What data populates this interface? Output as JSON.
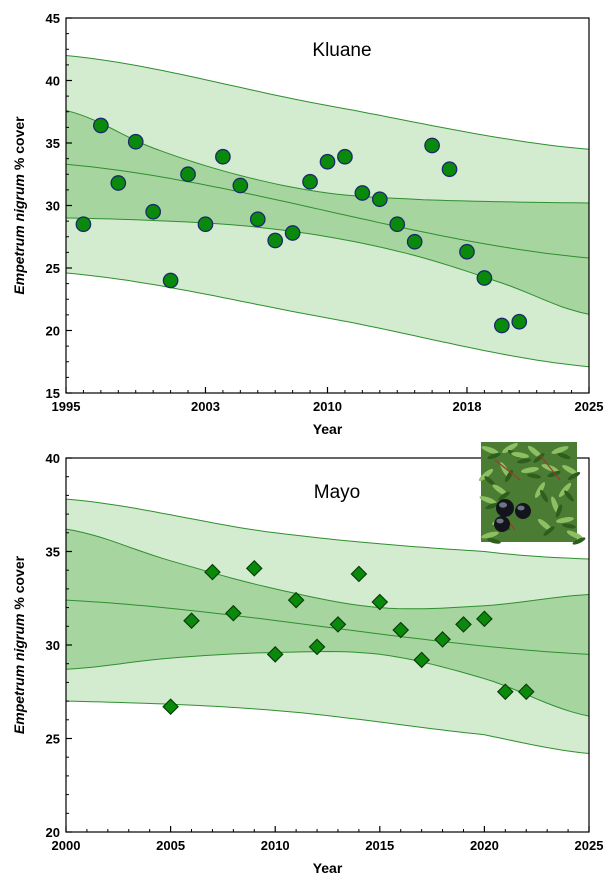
{
  "chart_data": [
    {
      "type": "scatter",
      "title": "Kluane",
      "xlabel": "Year",
      "ylabel_italic": "Empetrum nigrum",
      "ylabel_rest": " % cover",
      "xlim": [
        1995,
        2025
      ],
      "ylim": [
        15,
        45
      ],
      "xticks": [
        1995,
        2003,
        2010,
        2018,
        2025
      ],
      "yticks": [
        15,
        20,
        25,
        30,
        35,
        40,
        45
      ],
      "marker": "circle",
      "colors": {
        "marker": "#0a8a0a",
        "marker_edge": "#1b2a6b",
        "inner_band": "#a6d5a0",
        "outer_band": "#d3ebcf",
        "line": "#2f8f2f"
      },
      "points": [
        {
          "x": 1996,
          "y": 28.5
        },
        {
          "x": 1997,
          "y": 36.4
        },
        {
          "x": 1998,
          "y": 31.8
        },
        {
          "x": 1999,
          "y": 35.1
        },
        {
          "x": 2000,
          "y": 29.5
        },
        {
          "x": 2001,
          "y": 24.0
        },
        {
          "x": 2002,
          "y": 32.5
        },
        {
          "x": 2003,
          "y": 28.5
        },
        {
          "x": 2004,
          "y": 33.9
        },
        {
          "x": 2005,
          "y": 31.6
        },
        {
          "x": 2006,
          "y": 28.9
        },
        {
          "x": 2007,
          "y": 27.2
        },
        {
          "x": 2008,
          "y": 27.8
        },
        {
          "x": 2009,
          "y": 31.9
        },
        {
          "x": 2010,
          "y": 33.5
        },
        {
          "x": 2011,
          "y": 33.9
        },
        {
          "x": 2012,
          "y": 31.0
        },
        {
          "x": 2013,
          "y": 30.5
        },
        {
          "x": 2014,
          "y": 28.5
        },
        {
          "x": 2015,
          "y": 27.1
        },
        {
          "x": 2016,
          "y": 34.8
        },
        {
          "x": 2017,
          "y": 32.9
        },
        {
          "x": 2018,
          "y": 26.3
        },
        {
          "x": 2019,
          "y": 24.2
        },
        {
          "x": 2020,
          "y": 20.4
        },
        {
          "x": 2021,
          "y": 20.7
        }
      ],
      "fit": {
        "x": [
          1995,
          2025
        ],
        "y": [
          33.3,
          25.8
        ]
      },
      "confidence_upper": {
        "x": [
          1995,
          2000,
          2005,
          2010,
          2015,
          2020,
          2025
        ],
        "y": [
          37.6,
          34.6,
          32.4,
          31.0,
          30.5,
          30.3,
          30.2
        ]
      },
      "confidence_lower": {
        "x": [
          1995,
          2000,
          2005,
          2010,
          2015,
          2020,
          2025
        ],
        "y": [
          29.0,
          28.8,
          28.4,
          27.5,
          26.0,
          23.8,
          21.3
        ]
      },
      "prediction_upper": {
        "x": [
          1995,
          2010,
          2025
        ],
        "y": [
          42.0,
          38.0,
          34.5
        ]
      },
      "prediction_lower": {
        "x": [
          1995,
          2010,
          2025
        ],
        "y": [
          24.6,
          21.0,
          17.1
        ]
      }
    },
    {
      "type": "scatter",
      "title": "Mayo",
      "xlabel": "Year",
      "ylabel_italic": "Empetrum nigrum",
      "ylabel_rest": " % cover",
      "xlim": [
        2000,
        2025
      ],
      "ylim": [
        20,
        40
      ],
      "xticks": [
        2000,
        2005,
        2010,
        2015,
        2020,
        2025
      ],
      "yticks": [
        20,
        25,
        30,
        35,
        40
      ],
      "marker": "diamond",
      "colors": {
        "marker": "#0a8a0a",
        "marker_edge": "#0b3d0b",
        "inner_band": "#a6d5a0",
        "outer_band": "#d3ebcf",
        "line": "#2f8f2f"
      },
      "points": [
        {
          "x": 2005,
          "y": 26.7
        },
        {
          "x": 2006,
          "y": 31.3
        },
        {
          "x": 2007,
          "y": 33.9
        },
        {
          "x": 2008,
          "y": 31.7
        },
        {
          "x": 2009,
          "y": 34.1
        },
        {
          "x": 2010,
          "y": 29.5
        },
        {
          "x": 2011,
          "y": 32.4
        },
        {
          "x": 2012,
          "y": 29.9
        },
        {
          "x": 2013,
          "y": 31.1
        },
        {
          "x": 2014,
          "y": 33.8
        },
        {
          "x": 2015,
          "y": 32.3
        },
        {
          "x": 2016,
          "y": 30.8
        },
        {
          "x": 2017,
          "y": 29.2
        },
        {
          "x": 2018,
          "y": 30.3
        },
        {
          "x": 2019,
          "y": 31.1
        },
        {
          "x": 2020,
          "y": 31.4
        },
        {
          "x": 2021,
          "y": 27.5
        },
        {
          "x": 2022,
          "y": 27.5
        }
      ],
      "fit": {
        "x": [
          2000,
          2025
        ],
        "y": [
          32.4,
          29.5
        ]
      },
      "confidence_upper": {
        "x": [
          2000,
          2005,
          2010,
          2015,
          2020,
          2025
        ],
        "y": [
          36.2,
          34.5,
          33.0,
          32.0,
          32.1,
          32.7
        ]
      },
      "confidence_lower": {
        "x": [
          2000,
          2005,
          2010,
          2015,
          2020,
          2025
        ],
        "y": [
          28.7,
          29.3,
          29.6,
          29.5,
          28.2,
          26.2
        ]
      },
      "prediction_upper": {
        "x": [
          2000,
          2010,
          2020,
          2025
        ],
        "y": [
          37.8,
          36.0,
          35.0,
          34.6
        ]
      },
      "prediction_lower": {
        "x": [
          2000,
          2010,
          2020,
          2025
        ],
        "y": [
          27.0,
          26.5,
          25.2,
          24.2
        ]
      }
    }
  ],
  "inset_photo": {
    "subject": "black crowberry berries",
    "icon": "crowberry-photo"
  }
}
